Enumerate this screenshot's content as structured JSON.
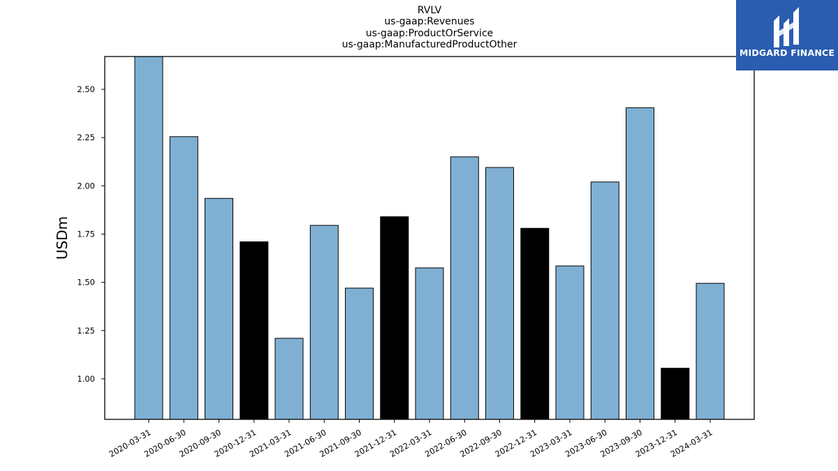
{
  "brand": {
    "name": "MIDGARD FINANCE",
    "color": "#2a5db0"
  },
  "colors": {
    "bar_default": "#7fb0d3",
    "bar_highlight": "#000000",
    "edge": "#000000"
  },
  "chart_data": {
    "type": "bar",
    "title_lines": [
      "RVLV",
      "us-gaap:Revenues",
      "us-gaap:ProductOrService",
      "us-gaap:ManufacturedProductOther"
    ],
    "xlabel": "",
    "ylabel": "USDm",
    "ylim": [
      0.79,
      2.67
    ],
    "yticks": [
      "1.00",
      "1.25",
      "1.50",
      "1.75",
      "2.00",
      "2.25",
      "2.50"
    ],
    "grid": false,
    "categories": [
      "2020-03-31",
      "2020-06-30",
      "2020-09-30",
      "2020-12-31",
      "2021-03-31",
      "2021-06-30",
      "2021-09-30",
      "2021-12-31",
      "2022-03-31",
      "2022-06-30",
      "2022-09-30",
      "2022-12-31",
      "2023-03-31",
      "2023-06-30",
      "2023-09-30",
      "2023-12-31",
      "2024-03-31"
    ],
    "values": [
      2.67,
      2.255,
      1.935,
      1.71,
      1.21,
      1.795,
      1.47,
      1.84,
      1.575,
      2.15,
      2.095,
      1.78,
      1.585,
      2.02,
      2.405,
      1.055,
      1.495
    ],
    "highlight": [
      false,
      false,
      false,
      true,
      false,
      false,
      false,
      true,
      false,
      false,
      false,
      true,
      false,
      false,
      false,
      true,
      false
    ]
  }
}
